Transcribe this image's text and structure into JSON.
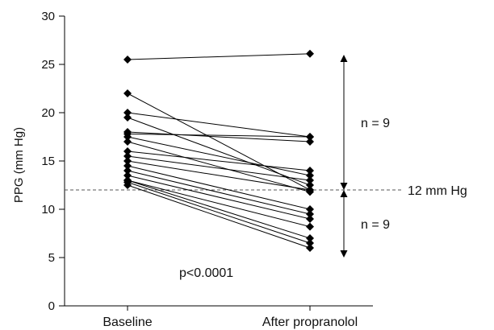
{
  "chart_data": {
    "type": "line",
    "title": "",
    "xlabel": "",
    "ylabel": "PPG (mm Hg)",
    "categories": [
      "Baseline",
      "After propranolol"
    ],
    "ylim": [
      0,
      30
    ],
    "yticks": [
      0,
      5,
      10,
      15,
      20,
      25,
      30
    ],
    "grid": false,
    "legend": "none",
    "series": [
      {
        "values": [
          25.5,
          26.1
        ]
      },
      {
        "values": [
          22.0,
          12.0
        ]
      },
      {
        "values": [
          20.0,
          17.5
        ]
      },
      {
        "values": [
          19.5,
          12.5
        ]
      },
      {
        "values": [
          18.0,
          17.0
        ]
      },
      {
        "values": [
          17.8,
          17.5
        ]
      },
      {
        "values": [
          17.5,
          13.5
        ]
      },
      {
        "values": [
          17.0,
          11.8
        ]
      },
      {
        "values": [
          16.0,
          14.0
        ]
      },
      {
        "values": [
          15.5,
          13.0
        ]
      },
      {
        "values": [
          15.0,
          12.0
        ]
      },
      {
        "values": [
          14.5,
          10.0
        ]
      },
      {
        "values": [
          14.0,
          9.5
        ]
      },
      {
        "values": [
          13.5,
          9.0
        ]
      },
      {
        "values": [
          13.0,
          8.2
        ]
      },
      {
        "values": [
          13.0,
          7.0
        ]
      },
      {
        "values": [
          12.8,
          6.5
        ]
      },
      {
        "values": [
          12.5,
          6.0
        ]
      }
    ],
    "reference_line": {
      "value": 12,
      "label": "12 mm Hg"
    },
    "group_annotations": [
      {
        "label": "n = 9",
        "from": 12,
        "to": 26
      },
      {
        "label": "n = 9",
        "from": 5,
        "to": 12
      }
    ],
    "annotation": "p<0.0001",
    "colors": {
      "line": "#000000",
      "marker": "#000000",
      "reference": "#555555"
    }
  }
}
